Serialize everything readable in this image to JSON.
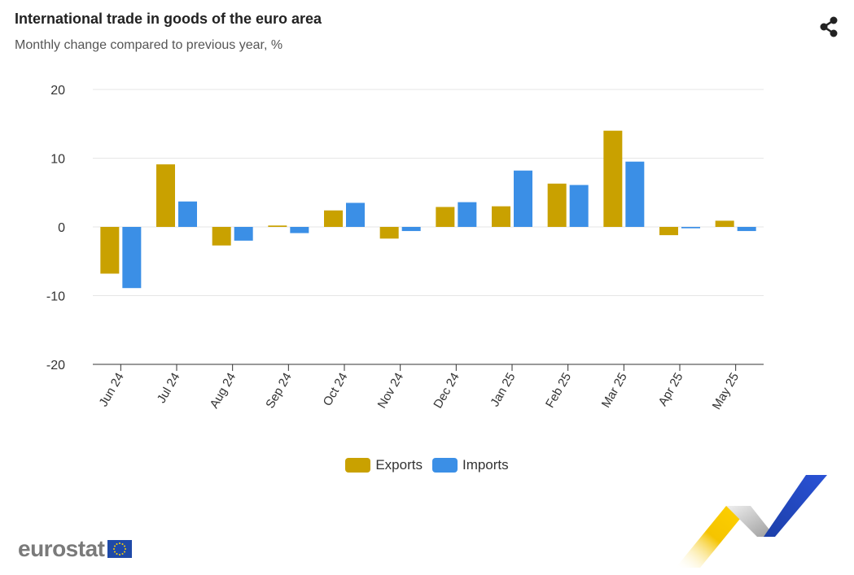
{
  "header": {
    "title": "International trade in goods of the euro area",
    "subtitle": "Monthly change compared to previous year, %"
  },
  "icons": {
    "share": "share-icon"
  },
  "legend": {
    "exports": "Exports",
    "imports": "Imports"
  },
  "colors": {
    "exports": "#C9A100",
    "imports": "#3B8FE6",
    "grid": "#e6e6e6",
    "axis": "#333333"
  },
  "logo": {
    "text": "eurostat"
  },
  "chart_data": {
    "type": "bar",
    "title": "International trade in goods of the euro area",
    "subtitle": "Monthly change compared to previous year, %",
    "xlabel": "",
    "ylabel": "",
    "ylim": [
      -20,
      20
    ],
    "yticks": [
      20,
      10,
      0,
      -10,
      -20
    ],
    "grid": true,
    "legend_position": "bottom-center",
    "categories": [
      "Jun 24",
      "Jul 24",
      "Aug 24",
      "Sep 24",
      "Oct 24",
      "Nov 24",
      "Dec 24",
      "Jan 25",
      "Feb 25",
      "Mar 25",
      "Apr 25",
      "May 25"
    ],
    "series": [
      {
        "name": "Exports",
        "values": [
          -6.8,
          9.1,
          -2.7,
          0.2,
          2.4,
          -1.7,
          2.9,
          3.0,
          6.3,
          14.0,
          -1.2,
          0.9
        ]
      },
      {
        "name": "Imports",
        "values": [
          -8.9,
          3.7,
          -2.0,
          -0.9,
          3.5,
          -0.6,
          3.6,
          8.2,
          6.1,
          9.5,
          -0.2,
          -0.6
        ]
      }
    ]
  }
}
